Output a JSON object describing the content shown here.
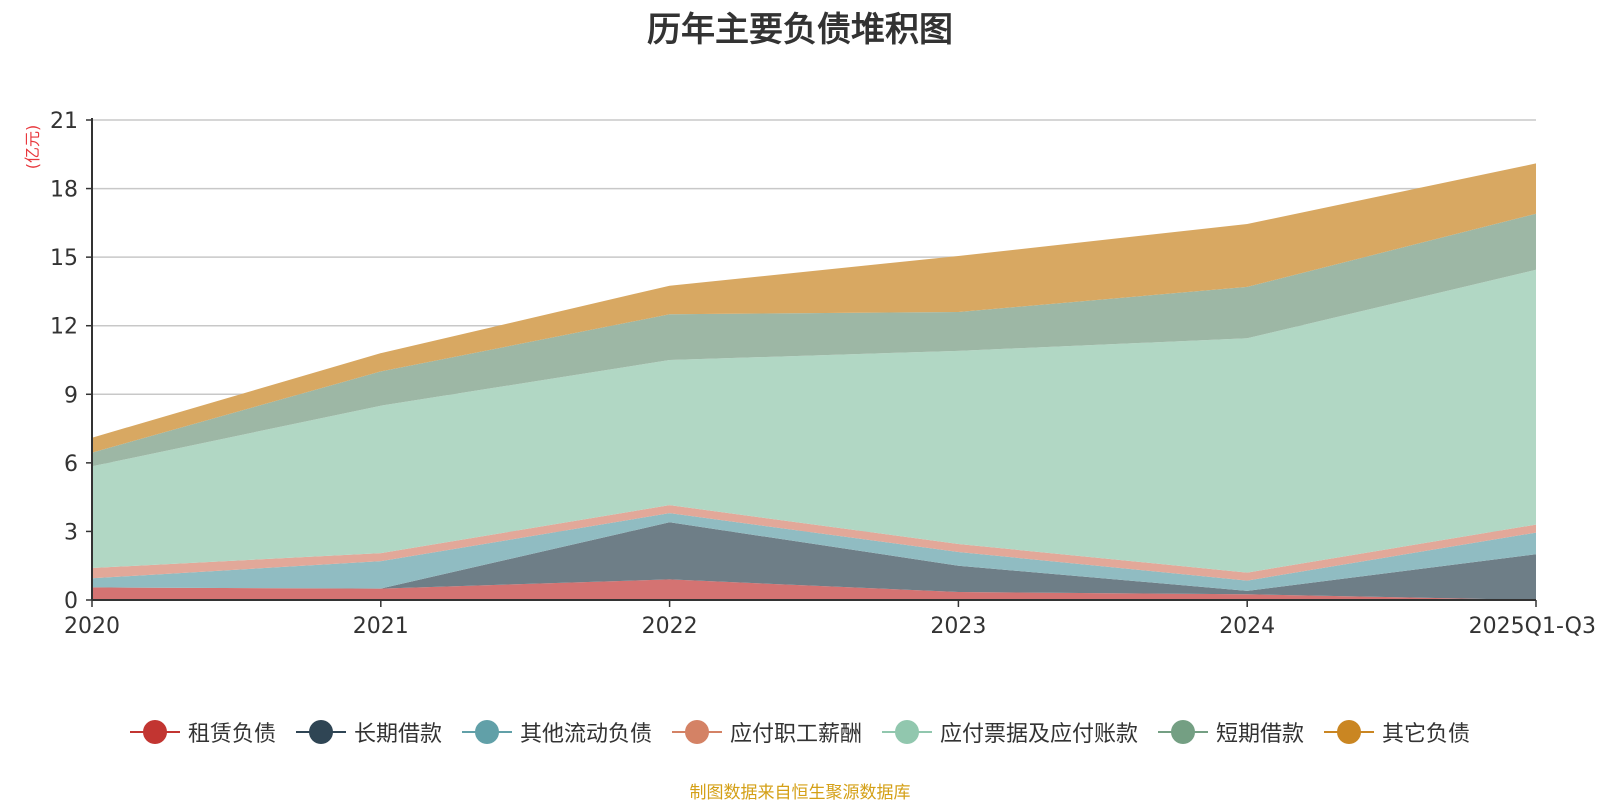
{
  "chart_data": {
    "type": "area",
    "stacked": true,
    "title": "历年主要负债堆积图",
    "ylabel": "(亿元)",
    "xlabel": "",
    "categories": [
      "2020",
      "2021",
      "2022",
      "2023",
      "2024",
      "2025Q1-Q3"
    ],
    "ylim": [
      0,
      21
    ],
    "yticks": [
      0,
      3,
      6,
      9,
      12,
      15,
      18,
      21
    ],
    "grid": true,
    "legend_position": "bottom",
    "series": [
      {
        "name": "租赁负债",
        "color": "#c23531",
        "fill": "#d47372",
        "values": [
          0.55,
          0.5,
          0.9,
          0.35,
          0.25,
          0.0
        ]
      },
      {
        "name": "长期借款",
        "color": "#2f4554",
        "fill": "#6e7e87",
        "values": [
          0.0,
          0.0,
          2.5,
          1.15,
          0.15,
          2.0
        ]
      },
      {
        "name": "其他流动负债",
        "color": "#61a0a8",
        "fill": "#90bcc2",
        "values": [
          0.4,
          1.2,
          0.4,
          0.6,
          0.45,
          0.95
        ]
      },
      {
        "name": "应付职工薪酬",
        "color": "#d48265",
        "fill": "#e2a899",
        "values": [
          0.45,
          0.35,
          0.35,
          0.35,
          0.35,
          0.35
        ]
      },
      {
        "name": "应付票据及应付账款",
        "color": "#91c7ae",
        "fill": "#b1d7c4",
        "values": [
          4.45,
          6.45,
          6.35,
          8.45,
          10.25,
          11.15
        ]
      },
      {
        "name": "短期借款",
        "color": "#749f83",
        "fill": "#9db7a5",
        "values": [
          0.6,
          1.5,
          2.0,
          1.7,
          2.25,
          2.45
        ]
      },
      {
        "name": "其它负债",
        "color": "#ca8622",
        "fill": "#d8a862",
        "values": [
          0.65,
          0.8,
          1.25,
          2.45,
          2.75,
          2.2
        ]
      }
    ]
  },
  "source_note": "制图数据来自恒生聚源数据库"
}
